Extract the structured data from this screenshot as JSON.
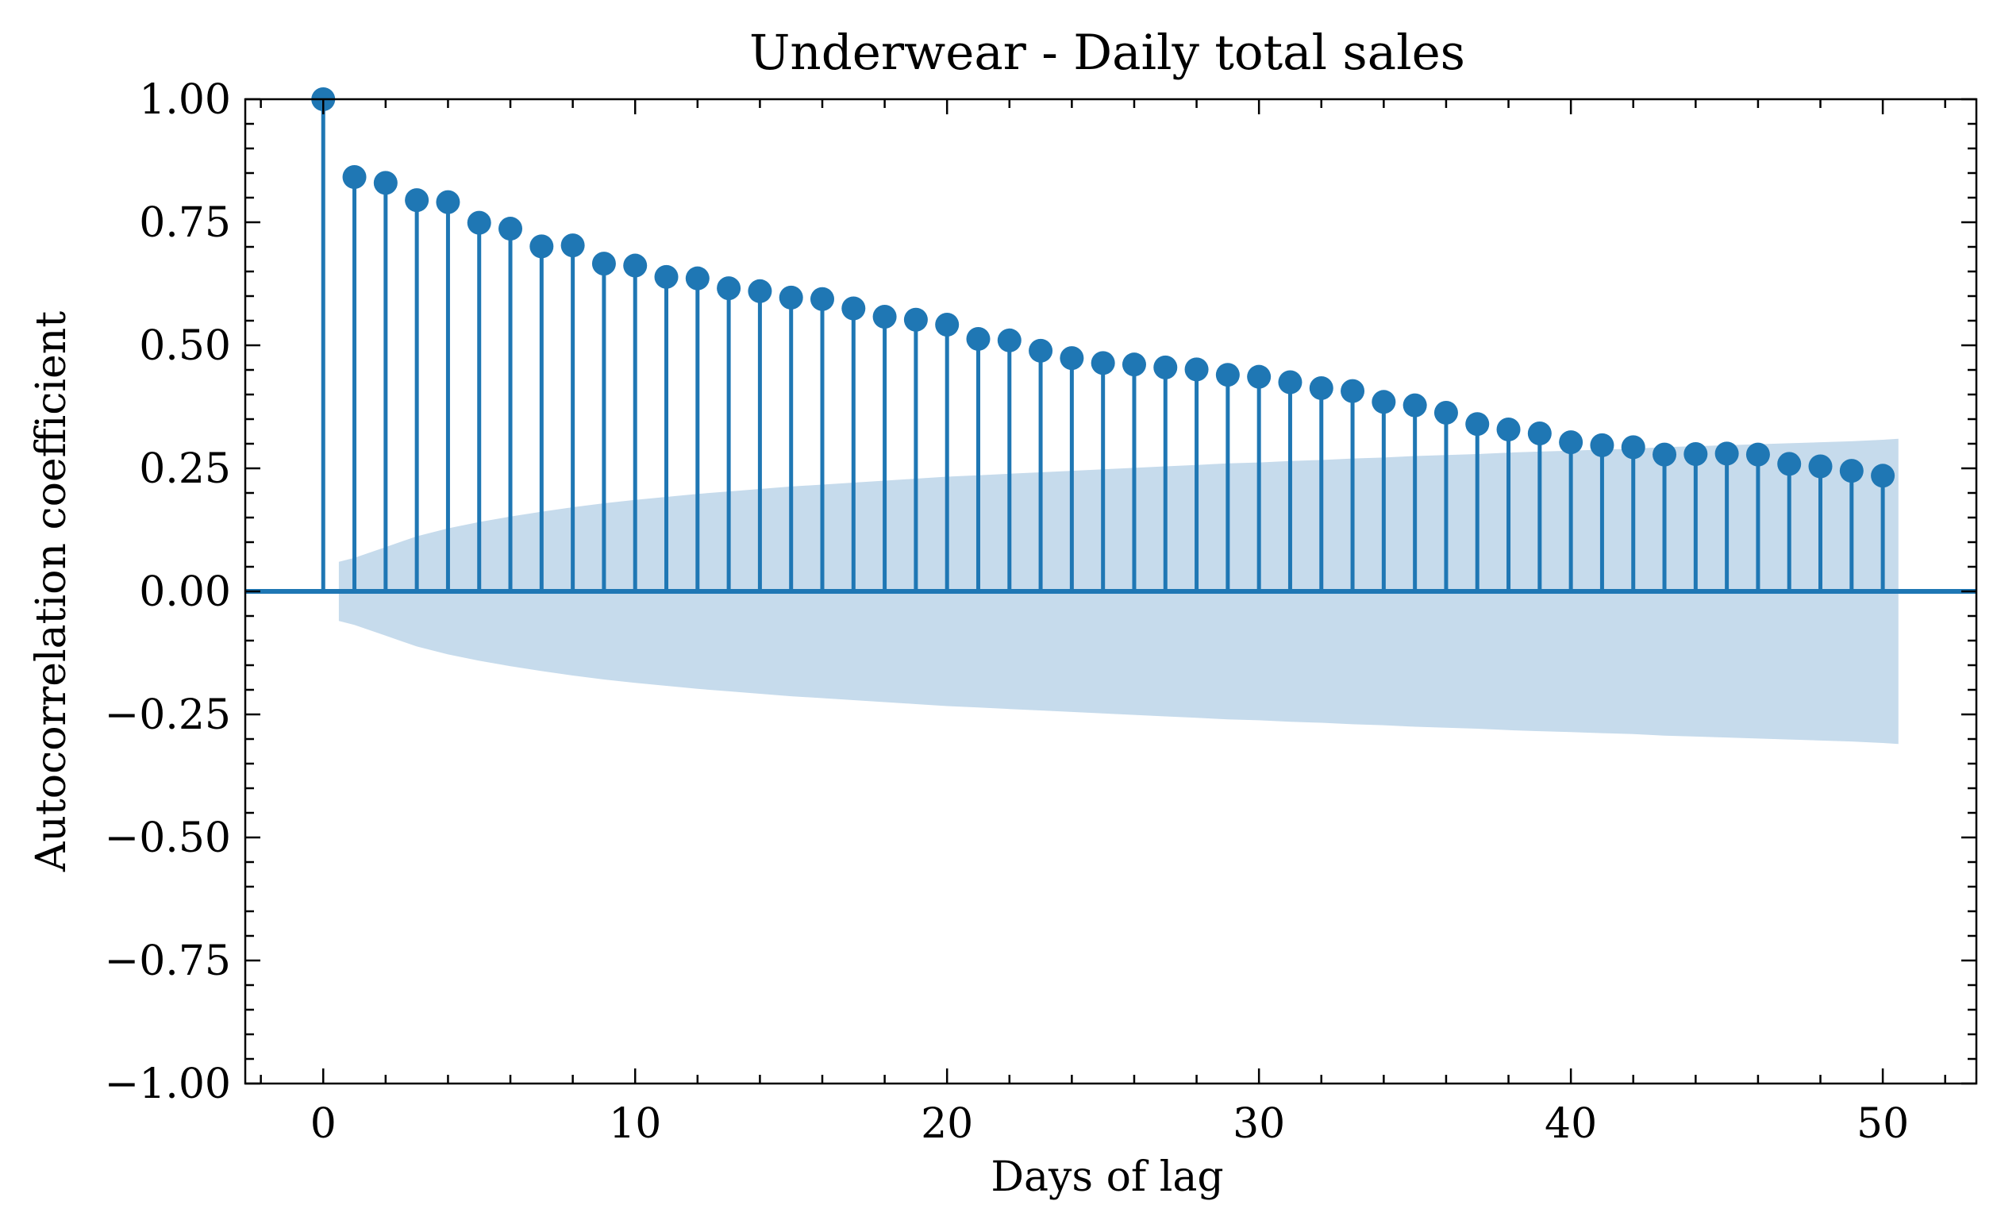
{
  "chart_data": {
    "type": "stem",
    "title": "Underwear - Daily total sales",
    "xlabel": "Days of lag",
    "ylabel": "Autocorrelation coefficient",
    "xlim": [
      -2.5,
      53
    ],
    "ylim": [
      -1.0,
      1.0
    ],
    "xticks": [
      0,
      10,
      20,
      30,
      40,
      50
    ],
    "xtick_labels": [
      "0",
      "10",
      "20",
      "30",
      "40",
      "50"
    ],
    "yticks": [
      -1.0,
      -0.75,
      -0.5,
      -0.25,
      0.0,
      0.25,
      0.5,
      0.75,
      1.0
    ],
    "ytick_labels": [
      "−1.00",
      "−0.75",
      "−0.50",
      "−0.25",
      "0.00",
      "0.25",
      "0.50",
      "0.75",
      "1.00"
    ],
    "grid": false,
    "colors": {
      "stem": "#1f77b4",
      "band": "#c6dbec"
    },
    "lags": [
      0,
      1,
      2,
      3,
      4,
      5,
      6,
      7,
      8,
      9,
      10,
      11,
      12,
      13,
      14,
      15,
      16,
      17,
      18,
      19,
      20,
      21,
      22,
      23,
      24,
      25,
      26,
      27,
      28,
      29,
      30,
      31,
      32,
      33,
      34,
      35,
      36,
      37,
      38,
      39,
      40,
      41,
      42,
      43,
      44,
      45,
      46,
      47,
      48,
      49,
      50
    ],
    "acf": [
      1.0,
      0.842,
      0.83,
      0.795,
      0.791,
      0.749,
      0.737,
      0.701,
      0.703,
      0.666,
      0.662,
      0.639,
      0.636,
      0.616,
      0.61,
      0.597,
      0.594,
      0.575,
      0.558,
      0.552,
      0.542,
      0.513,
      0.51,
      0.489,
      0.474,
      0.464,
      0.461,
      0.455,
      0.451,
      0.44,
      0.436,
      0.425,
      0.413,
      0.407,
      0.385,
      0.378,
      0.363,
      0.34,
      0.329,
      0.321,
      0.303,
      0.297,
      0.293,
      0.278,
      0.279,
      0.28,
      0.278,
      0.259,
      0.254,
      0.245,
      0.235
    ],
    "confidence_band": {
      "x": [
        0.5,
        1,
        2,
        3,
        4,
        5,
        6,
        7,
        8,
        9,
        10,
        11,
        12,
        13,
        14,
        15,
        16,
        17,
        18,
        19,
        20,
        21,
        22,
        23,
        24,
        25,
        26,
        27,
        28,
        29,
        30,
        31,
        32,
        33,
        34,
        35,
        36,
        37,
        38,
        39,
        40,
        41,
        42,
        43,
        44,
        45,
        46,
        47,
        48,
        49,
        50,
        50.5
      ],
      "upper": [
        0.06,
        0.068,
        0.09,
        0.112,
        0.128,
        0.141,
        0.152,
        0.162,
        0.171,
        0.179,
        0.186,
        0.192,
        0.198,
        0.203,
        0.208,
        0.213,
        0.217,
        0.221,
        0.225,
        0.229,
        0.233,
        0.236,
        0.239,
        0.242,
        0.245,
        0.248,
        0.251,
        0.254,
        0.257,
        0.26,
        0.262,
        0.265,
        0.267,
        0.27,
        0.272,
        0.275,
        0.277,
        0.279,
        0.282,
        0.284,
        0.286,
        0.288,
        0.29,
        0.293,
        0.295,
        0.297,
        0.299,
        0.301,
        0.303,
        0.305,
        0.308,
        0.31
      ]
    }
  }
}
